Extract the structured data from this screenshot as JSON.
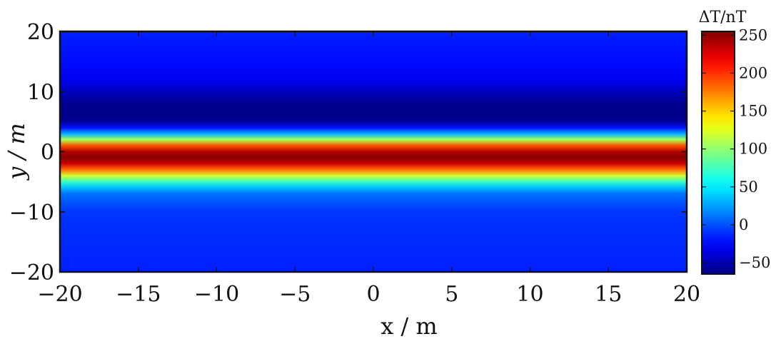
{
  "chart_data": {
    "type": "heatmap",
    "title": "",
    "xlabel": "x / m",
    "ylabel": "y / m",
    "xlim": [
      -20,
      20
    ],
    "ylim": [
      -20,
      20
    ],
    "x_ticks": [
      -20,
      -15,
      -10,
      -5,
      0,
      5,
      10,
      15,
      20
    ],
    "x_tick_labels": [
      "−20",
      "−15",
      "−10",
      "−5",
      "0",
      "5",
      "10",
      "15",
      "20"
    ],
    "y_ticks": [
      -20,
      -10,
      0,
      10,
      20
    ],
    "y_tick_labels": [
      "−20",
      "−10",
      "0",
      "10",
      "20"
    ],
    "colormap": "jet",
    "colorbar": {
      "label": "ΔT/nT",
      "range": [
        -65,
        255
      ],
      "ticks": [
        -50,
        0,
        50,
        100,
        150,
        200,
        250
      ],
      "tick_labels": [
        "−50",
        "0",
        "50",
        "100",
        "150",
        "200",
        "250"
      ]
    },
    "profile_along_y": {
      "description_note": "",
      "y": [
        -20,
        -15,
        -10,
        -7,
        -6,
        -5,
        -4,
        -3,
        -2,
        -1,
        0,
        1,
        2,
        3,
        4,
        5,
        6,
        8,
        10,
        12,
        15,
        20
      ],
      "dT": [
        -15,
        -12,
        -8,
        10,
        35,
        70,
        120,
        180,
        230,
        252,
        240,
        190,
        110,
        30,
        -20,
        -55,
        -62,
        -60,
        -45,
        -30,
        -22,
        -15
      ]
    },
    "grid": false
  }
}
